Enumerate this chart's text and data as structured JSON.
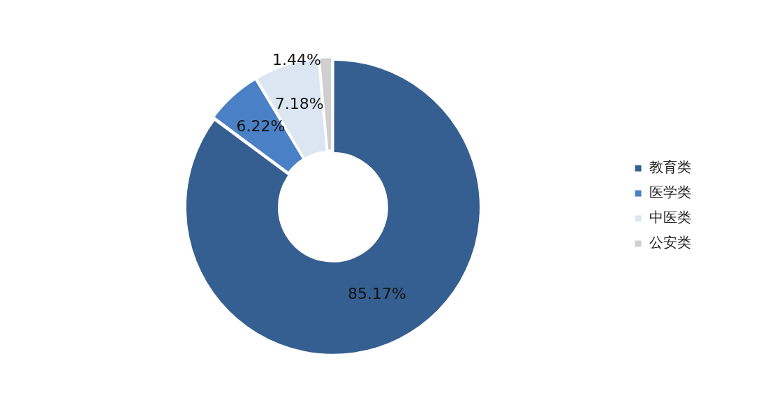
{
  "chart_data": {
    "type": "donut",
    "categories": [
      "教育类",
      "医学类",
      "中医类",
      "公安类"
    ],
    "values": [
      85.17,
      6.22,
      7.18,
      1.44
    ],
    "colors": [
      "#355f91",
      "#4a80c6",
      "#dce6f2",
      "#cfcfcf"
    ],
    "value_labels": [
      "85.17%",
      "6.22%",
      "7.18%",
      "1.44%"
    ],
    "legend": "right"
  }
}
